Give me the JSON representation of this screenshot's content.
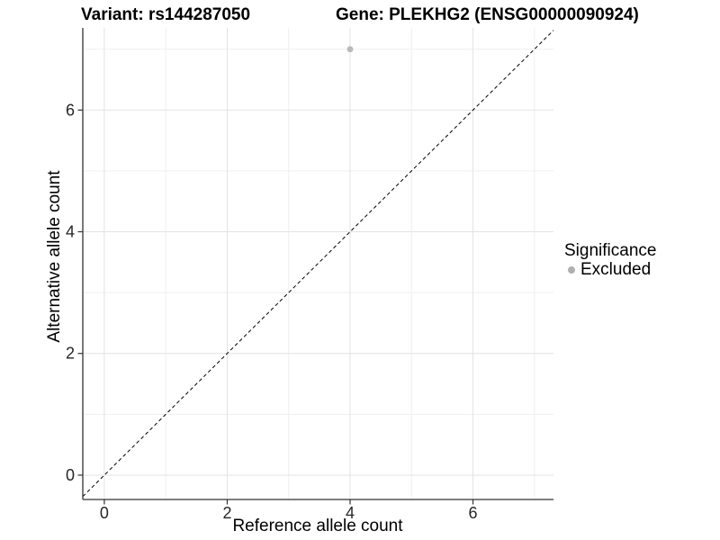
{
  "chart_data": {
    "type": "scatter",
    "title_left": "Variant: rs144287050",
    "title_right": "Gene: PLEKHG2 (ENSG00000090924)",
    "xlabel": "Reference allele count",
    "ylabel": "Alternative allele count",
    "xlim": [
      -0.35,
      7.31
    ],
    "ylim": [
      -0.4,
      7.35
    ],
    "x_major_ticks": [
      0,
      2,
      4,
      6
    ],
    "x_minor_ticks": [
      1,
      3,
      5,
      7
    ],
    "y_major_ticks": [
      0,
      2,
      4,
      6
    ],
    "y_minor_ticks": [
      1,
      3,
      5,
      7
    ],
    "grid": true,
    "points": [
      {
        "x": 4,
        "y": 7,
        "significance": "Excluded"
      }
    ],
    "reference_line": {
      "type": "abline",
      "slope": 1,
      "intercept": 0,
      "style": "dashed"
    },
    "legend": {
      "title": "Significance",
      "position": "right",
      "items": [
        {
          "label": "Excluded",
          "color": "#b0b0b0"
        }
      ]
    },
    "colors": {
      "point": "#b9b9b9",
      "grid_major": "#e3e3e3",
      "grid_minor": "#efefef",
      "axis": "#333333",
      "tick_label": "#262626",
      "reference_line": "#000000"
    }
  }
}
